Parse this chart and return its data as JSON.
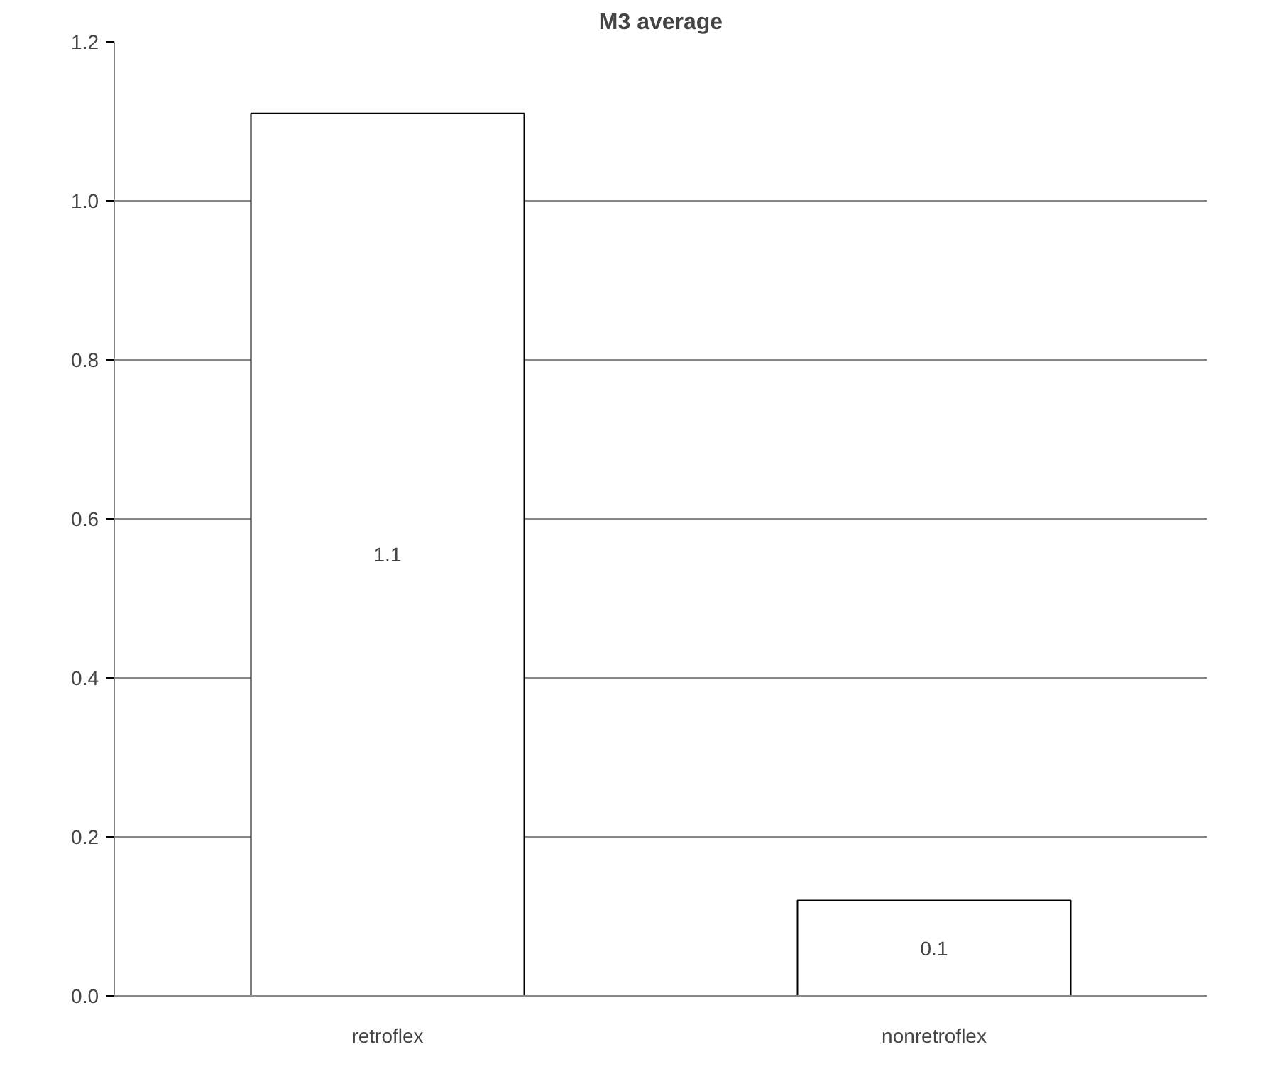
{
  "chart_data": {
    "type": "bar",
    "title": "M3 average",
    "categories": [
      "retroflex",
      "nonretroflex"
    ],
    "values": [
      1.11,
      0.12
    ],
    "value_labels": [
      "1.1",
      "0.1"
    ],
    "color": "#ffffff",
    "ylim": [
      0,
      1.2
    ],
    "yticks": [
      {
        "value": 0,
        "label": "0.0"
      },
      {
        "value": 0.2,
        "label": "0.2"
      },
      {
        "value": 0.4,
        "label": "0.4"
      },
      {
        "value": 0.6,
        "label": "0.6"
      },
      {
        "value": 0.8,
        "label": "0.8"
      },
      {
        "value": 1.0,
        "label": "1.0"
      },
      {
        "value": 1.2,
        "label": "1.2"
      }
    ],
    "grid": "y"
  }
}
